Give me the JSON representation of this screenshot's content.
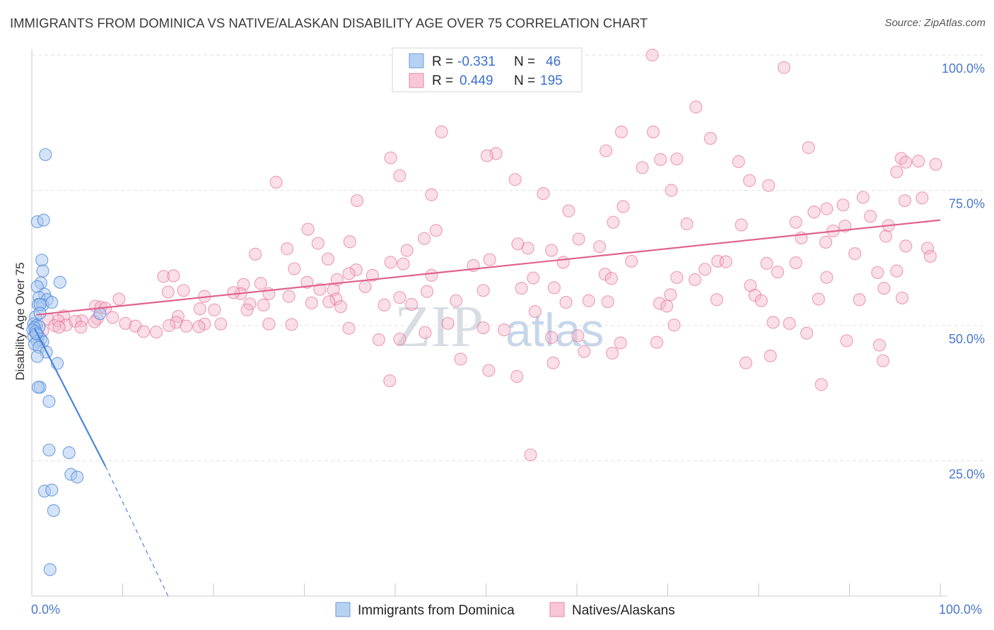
{
  "header": {
    "title": "IMMIGRANTS FROM DOMINICA VS NATIVE/ALASKAN DISABILITY AGE OVER 75 CORRELATION CHART",
    "source": "Source: ZipAtlas.com"
  },
  "watermark": {
    "zip": "ZIP",
    "atlas": "atlas"
  },
  "legend_top": {
    "rows": [
      {
        "r_label": "R = ",
        "r_value": "-0.331",
        "n_label": "N = ",
        "n_value": "46"
      },
      {
        "r_label": "R = ",
        "r_value": "0.449",
        "n_label": "N = ",
        "n_value": "195"
      }
    ]
  },
  "chart_data": {
    "type": "scatter",
    "title": "IMMIGRANTS FROM DOMINICA VS NATIVE/ALASKAN DISABILITY AGE OVER 75 CORRELATION CHART",
    "xlabel": "",
    "ylabel": "Disability Age Over 75",
    "xlim": [
      0,
      100
    ],
    "ylim": [
      0,
      100
    ],
    "x_tick_labels": [
      "0.0%",
      "100.0%"
    ],
    "y_tick_labels": [
      {
        "value": 100,
        "label": "100.0%"
      },
      {
        "value": 75,
        "label": "75.0%"
      },
      {
        "value": 50,
        "label": "50.0%"
      },
      {
        "value": 25,
        "label": "25.0%"
      }
    ],
    "colors": {
      "blue": "#4a86d8",
      "blue_fill": "#a9c8ef",
      "pink": "#e0618d",
      "pink_fill": "#f5b7cb",
      "tick": "#4a78c9"
    },
    "series": [
      {
        "name": "Immigrants from Dominica",
        "color": "#4a86d8",
        "R": -0.331,
        "N": 46,
        "trend": {
          "solid": [
            [
              0.3,
              49.5
            ],
            [
              8.1,
              24.0
            ]
          ],
          "dashed": [
            [
              8.1,
              24.0
            ],
            [
              15.0,
              0.0
            ]
          ]
        },
        "points": [
          [
            1.5,
            81.6
          ],
          [
            0.6,
            69.2
          ],
          [
            1.3,
            69.5
          ],
          [
            1.1,
            62.1
          ],
          [
            1.2,
            60.1
          ],
          [
            3.1,
            58.0
          ],
          [
            1.0,
            57.9
          ],
          [
            0.6,
            57.2
          ],
          [
            1.4,
            55.8
          ],
          [
            0.8,
            55.2
          ],
          [
            1.7,
            54.8
          ],
          [
            0.7,
            53.9
          ],
          [
            1.2,
            53.8
          ],
          [
            2.2,
            54.3
          ],
          [
            0.9,
            53.9
          ],
          [
            0.4,
            51.6
          ],
          [
            7.5,
            52.2
          ],
          [
            0.2,
            50.3
          ],
          [
            0.5,
            50.0
          ],
          [
            0.8,
            49.8
          ],
          [
            0.3,
            49.6
          ],
          [
            0.1,
            49.2
          ],
          [
            0.4,
            48.9
          ],
          [
            0.7,
            48.2
          ],
          [
            0.2,
            47.9
          ],
          [
            1.0,
            47.5
          ],
          [
            0.6,
            47.1
          ],
          [
            1.2,
            47.0
          ],
          [
            0.3,
            46.6
          ],
          [
            0.8,
            46.0
          ],
          [
            1.6,
            45.1
          ],
          [
            0.6,
            44.3
          ],
          [
            2.8,
            43.0
          ],
          [
            0.9,
            38.6
          ],
          [
            0.7,
            38.6
          ],
          [
            1.9,
            36.0
          ],
          [
            1.9,
            27.0
          ],
          [
            4.1,
            26.5
          ],
          [
            4.3,
            22.5
          ],
          [
            5.0,
            22.0
          ],
          [
            1.4,
            19.4
          ],
          [
            2.2,
            19.6
          ],
          [
            2.4,
            15.8
          ],
          [
            2.0,
            4.9
          ],
          [
            0.5,
            48.5
          ],
          [
            0.9,
            52.3
          ]
        ]
      },
      {
        "name": "Natives/Alaskans",
        "color": "#e0618d",
        "R": 0.449,
        "N": 195,
        "trend": {
          "solid": [
            [
              0.5,
              52.0
            ],
            [
              100,
              69.5
            ]
          ]
        },
        "points": [
          [
            68.3,
            100.0
          ],
          [
            82.8,
            97.7
          ],
          [
            73.1,
            90.4
          ],
          [
            64.9,
            85.8
          ],
          [
            68.4,
            85.8
          ],
          [
            45.1,
            85.8
          ],
          [
            74.7,
            84.6
          ],
          [
            85.5,
            82.9
          ],
          [
            63.2,
            82.3
          ],
          [
            51.1,
            81.8
          ],
          [
            50.1,
            81.4
          ],
          [
            69.2,
            80.7
          ],
          [
            71.0,
            80.8
          ],
          [
            39.5,
            81.0
          ],
          [
            95.7,
            80.9
          ],
          [
            97.6,
            80.4
          ],
          [
            99.5,
            79.8
          ],
          [
            96.2,
            80.2
          ],
          [
            77.8,
            80.3
          ],
          [
            67.2,
            79.2
          ],
          [
            95.2,
            78.4
          ],
          [
            40.5,
            77.7
          ],
          [
            53.2,
            77.0
          ],
          [
            79.0,
            76.8
          ],
          [
            26.9,
            76.5
          ],
          [
            81.1,
            75.9
          ],
          [
            70.4,
            75.0
          ],
          [
            56.3,
            74.4
          ],
          [
            44.0,
            74.2
          ],
          [
            96.1,
            73.1
          ],
          [
            91.5,
            73.7
          ],
          [
            98.0,
            73.6
          ],
          [
            35.8,
            73.1
          ],
          [
            65.1,
            72.0
          ],
          [
            89.3,
            72.3
          ],
          [
            87.5,
            71.6
          ],
          [
            86.1,
            71.0
          ],
          [
            59.1,
            71.2
          ],
          [
            92.3,
            70.2
          ],
          [
            64.0,
            69.1
          ],
          [
            84.1,
            69.1
          ],
          [
            72.1,
            68.8
          ],
          [
            78.1,
            68.6
          ],
          [
            89.5,
            68.4
          ],
          [
            88.2,
            67.5
          ],
          [
            94.3,
            68.5
          ],
          [
            30.4,
            67.8
          ],
          [
            44.5,
            67.6
          ],
          [
            60.2,
            66.0
          ],
          [
            43.2,
            66.1
          ],
          [
            84.7,
            66.2
          ],
          [
            94.0,
            66.5
          ],
          [
            87.4,
            65.4
          ],
          [
            35.0,
            65.5
          ],
          [
            31.5,
            65.2
          ],
          [
            53.5,
            65.1
          ],
          [
            96.2,
            64.7
          ],
          [
            62.5,
            64.6
          ],
          [
            54.6,
            64.3
          ],
          [
            28.1,
            64.2
          ],
          [
            98.6,
            64.3
          ],
          [
            41.3,
            63.9
          ],
          [
            57.2,
            63.9
          ],
          [
            90.6,
            63.3
          ],
          [
            24.6,
            63.2
          ],
          [
            32.6,
            62.3
          ],
          [
            58.5,
            61.7
          ],
          [
            75.5,
            61.9
          ],
          [
            50.4,
            62.2
          ],
          [
            66.0,
            61.9
          ],
          [
            76.4,
            61.8
          ],
          [
            39.5,
            61.7
          ],
          [
            80.9,
            61.5
          ],
          [
            84.1,
            61.6
          ],
          [
            98.9,
            62.8
          ],
          [
            40.9,
            61.4
          ],
          [
            48.6,
            61.1
          ],
          [
            28.9,
            60.5
          ],
          [
            35.7,
            60.3
          ],
          [
            74.1,
            60.4
          ],
          [
            82.1,
            59.9
          ],
          [
            95.2,
            60.1
          ],
          [
            93.1,
            59.8
          ],
          [
            34.9,
            59.6
          ],
          [
            37.5,
            59.3
          ],
          [
            44.0,
            59.3
          ],
          [
            63.1,
            59.5
          ],
          [
            71.0,
            58.9
          ],
          [
            87.5,
            58.9
          ],
          [
            14.5,
            59.1
          ],
          [
            15.6,
            59.2
          ],
          [
            55.2,
            58.8
          ],
          [
            63.8,
            58.7
          ],
          [
            73.0,
            58.5
          ],
          [
            33.6,
            58.5
          ],
          [
            30.3,
            58.0
          ],
          [
            25.2,
            57.8
          ],
          [
            23.3,
            57.6
          ],
          [
            36.7,
            57.2
          ],
          [
            79.1,
            57.4
          ],
          [
            53.9,
            56.9
          ],
          [
            57.5,
            57.0
          ],
          [
            49.7,
            56.5
          ],
          [
            93.8,
            56.9
          ],
          [
            16.7,
            56.5
          ],
          [
            31.7,
            56.7
          ],
          [
            33.2,
            56.6
          ],
          [
            15.0,
            56.2
          ],
          [
            23.0,
            55.9
          ],
          [
            26.1,
            55.9
          ],
          [
            19.0,
            55.4
          ],
          [
            40.5,
            55.2
          ],
          [
            43.5,
            56.3
          ],
          [
            22.2,
            56.1
          ],
          [
            95.8,
            55.1
          ],
          [
            28.3,
            55.4
          ],
          [
            79.6,
            55.6
          ],
          [
            33.5,
            54.9
          ],
          [
            70.3,
            55.7
          ],
          [
            86.6,
            54.9
          ],
          [
            91.1,
            54.8
          ],
          [
            9.6,
            54.9
          ],
          [
            61.3,
            54.6
          ],
          [
            75.4,
            54.8
          ],
          [
            46.7,
            54.6
          ],
          [
            63.4,
            54.4
          ],
          [
            80.3,
            54.6
          ],
          [
            32.7,
            54.4
          ],
          [
            69.1,
            54.1
          ],
          [
            58.8,
            54.3
          ],
          [
            30.8,
            54.2
          ],
          [
            25.5,
            53.8
          ],
          [
            38.8,
            53.8
          ],
          [
            41.8,
            53.9
          ],
          [
            24.0,
            54.0
          ],
          [
            7.0,
            53.6
          ],
          [
            69.9,
            53.6
          ],
          [
            7.6,
            53.4
          ],
          [
            34.0,
            53.5
          ],
          [
            18.5,
            53.1
          ],
          [
            23.7,
            52.9
          ],
          [
            20.1,
            52.9
          ],
          [
            55.4,
            52.6
          ],
          [
            8.1,
            53.2
          ],
          [
            3.5,
            51.8
          ],
          [
            16.1,
            51.7
          ],
          [
            1.8,
            51.2
          ],
          [
            7.2,
            51.3
          ],
          [
            8.9,
            51.5
          ],
          [
            5.5,
            50.9
          ],
          [
            2.9,
            50.9
          ],
          [
            15.9,
            50.6
          ],
          [
            3.8,
            50.1
          ],
          [
            10.3,
            50.4
          ],
          [
            4.8,
            50.8
          ],
          [
            17.0,
            49.9
          ],
          [
            19.0,
            50.3
          ],
          [
            20.8,
            50.3
          ],
          [
            6.9,
            50.7
          ],
          [
            26.1,
            50.3
          ],
          [
            28.6,
            50.2
          ],
          [
            45.8,
            50.4
          ],
          [
            2.5,
            50.0
          ],
          [
            15.1,
            50.0
          ],
          [
            5.4,
            49.7
          ],
          [
            3.0,
            49.7
          ],
          [
            18.4,
            49.8
          ],
          [
            70.7,
            50.1
          ],
          [
            11.4,
            49.9
          ],
          [
            12.3,
            48.9
          ],
          [
            13.7,
            48.8
          ],
          [
            52.0,
            49.2
          ],
          [
            81.6,
            50.6
          ],
          [
            83.4,
            50.4
          ],
          [
            34.9,
            49.5
          ],
          [
            43.3,
            48.7
          ],
          [
            1.2,
            49.0
          ],
          [
            0.4,
            48.7
          ],
          [
            49.7,
            49.6
          ],
          [
            85.3,
            48.6
          ],
          [
            60.1,
            48.1
          ],
          [
            57.2,
            47.8
          ],
          [
            68.8,
            46.9
          ],
          [
            89.7,
            47.2
          ],
          [
            93.3,
            46.4
          ],
          [
            40.5,
            47.5
          ],
          [
            64.8,
            46.8
          ],
          [
            38.2,
            47.4
          ],
          [
            60.8,
            45.2
          ],
          [
            63.9,
            44.9
          ],
          [
            81.3,
            44.4
          ],
          [
            93.7,
            43.5
          ],
          [
            78.6,
            43.1
          ],
          [
            47.2,
            43.8
          ],
          [
            57.4,
            43.1
          ],
          [
            50.3,
            41.7
          ],
          [
            53.4,
            40.6
          ],
          [
            39.4,
            39.8
          ],
          [
            86.9,
            39.1
          ],
          [
            54.9,
            26.1
          ]
        ]
      }
    ]
  },
  "bottom_legend": {
    "items": [
      {
        "label": "Immigrants from Dominica"
      },
      {
        "label": "Natives/Alaskans"
      }
    ]
  }
}
